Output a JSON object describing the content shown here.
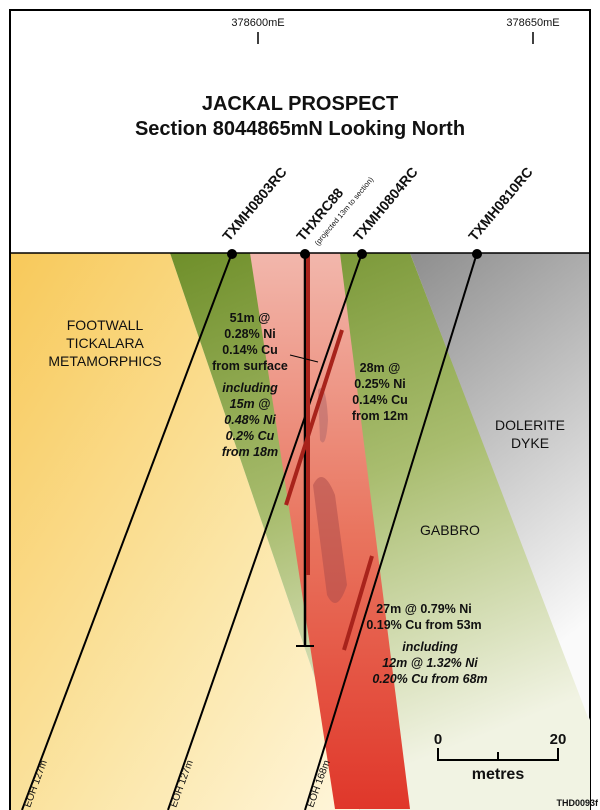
{
  "header": {
    "eastings": [
      "378600mE",
      "378650mE"
    ],
    "title": "JACKAL PROSPECT",
    "subtitle": "Section 8044865mN Looking North"
  },
  "holes": [
    {
      "name": "TXMH0803RC",
      "eoh": "EOH 127m"
    },
    {
      "name": "THXRC88",
      "note": "(projected 13m to section)"
    },
    {
      "name": "TXMH0804RC",
      "eoh": "EOH 127m"
    },
    {
      "name": "TXMH0810RC",
      "eoh": "EOH 168m"
    }
  ],
  "units": [
    {
      "lines": [
        "FOOTWALL",
        "TICKALARA",
        "METAMORPHICS"
      ]
    },
    {
      "lines": [
        "DOLERITE",
        "DYKE"
      ]
    },
    {
      "lines": [
        "GABBRO"
      ]
    }
  ],
  "intercepts": [
    {
      "lines": [
        "51m @",
        "0.28% Ni",
        "0.14% Cu",
        "from surface"
      ],
      "including": [
        "including",
        "15m @",
        "0.48% Ni",
        "0.2% Cu",
        "from 18m"
      ]
    },
    {
      "lines": [
        "28m @",
        "0.25% Ni",
        "0.14% Cu",
        "from 12m"
      ]
    },
    {
      "lines": [
        "27m @ 0.79% Ni",
        "0.19% Cu from 53m"
      ],
      "including": [
        "including",
        "12m @ 1.32% Ni",
        "0.20% Cu from 68m"
      ]
    }
  ],
  "scale": {
    "start": "0",
    "end": "20",
    "unit": "metres"
  },
  "figure_id": "THD0093f"
}
